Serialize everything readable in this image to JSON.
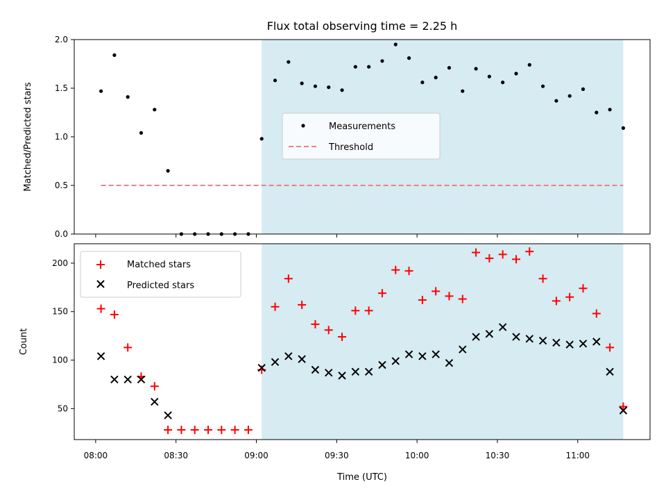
{
  "chart_data": [
    {
      "type": "scatter",
      "title": "Flux total observing time = 2.25 h",
      "xlabel": "",
      "ylabel": "Matched/Predicted stars",
      "ylim": [
        0,
        2.0
      ],
      "yticks": [
        "0.0",
        "0.5",
        "1.0",
        "1.5",
        "2.0"
      ],
      "shaded_span": {
        "start": "09:02",
        "end": "11:17",
        "color": "#add8e6"
      },
      "legend_position": "center",
      "threshold": {
        "name": "Threshold",
        "value": 0.5,
        "start": "08:02",
        "end": "11:17",
        "color": "#f08080",
        "style": "dashed"
      },
      "series": [
        {
          "name": "Measurements",
          "marker": "dot",
          "color": "#000000",
          "x": [
            "08:02",
            "08:07",
            "08:12",
            "08:17",
            "08:22",
            "08:27",
            "08:32",
            "08:37",
            "08:42",
            "08:47",
            "08:52",
            "08:57",
            "09:02",
            "09:07",
            "09:12",
            "09:17",
            "09:22",
            "09:27",
            "09:32",
            "09:37",
            "09:42",
            "09:47",
            "09:52",
            "09:57",
            "10:02",
            "10:07",
            "10:12",
            "10:17",
            "10:22",
            "10:27",
            "10:32",
            "10:37",
            "10:42",
            "10:47",
            "10:52",
            "10:57",
            "11:02",
            "11:07",
            "11:12",
            "11:17"
          ],
          "y": [
            1.47,
            1.84,
            1.41,
            1.04,
            1.28,
            0.65,
            0.0,
            0.0,
            0.0,
            0.0,
            0.0,
            0.0,
            0.98,
            1.58,
            1.77,
            1.55,
            1.52,
            1.51,
            1.48,
            1.72,
            1.72,
            1.78,
            1.95,
            1.81,
            1.56,
            1.61,
            1.71,
            1.47,
            1.7,
            1.62,
            1.56,
            1.65,
            1.74,
            1.52,
            1.37,
            1.42,
            1.49,
            1.25,
            1.28,
            1.09
          ]
        }
      ]
    },
    {
      "type": "scatter",
      "title": "",
      "xlabel": "Time (UTC)",
      "ylabel": "Count",
      "ylim": [
        18,
        220
      ],
      "yticks": [
        "50",
        "100",
        "150",
        "200"
      ],
      "xticks": [
        "08:00",
        "08:30",
        "09:00",
        "09:30",
        "10:00",
        "10:30",
        "11:00"
      ],
      "shaded_span": {
        "start": "09:02",
        "end": "11:17",
        "color": "#add8e6"
      },
      "legend_position": "upper left",
      "series": [
        {
          "name": "Matched stars",
          "marker": "plus",
          "color": "#ff0000",
          "x": [
            "08:02",
            "08:07",
            "08:12",
            "08:17",
            "08:22",
            "08:27",
            "08:32",
            "08:37",
            "08:42",
            "08:47",
            "08:52",
            "08:57",
            "09:02",
            "09:07",
            "09:12",
            "09:17",
            "09:22",
            "09:27",
            "09:32",
            "09:37",
            "09:42",
            "09:47",
            "09:52",
            "09:57",
            "10:02",
            "10:07",
            "10:12",
            "10:17",
            "10:22",
            "10:27",
            "10:32",
            "10:37",
            "10:42",
            "10:47",
            "10:52",
            "10:57",
            "11:02",
            "11:07",
            "11:12",
            "11:17"
          ],
          "y": [
            153,
            147,
            113,
            83,
            73,
            28,
            28,
            28,
            28,
            28,
            28,
            28,
            90,
            155,
            184,
            157,
            137,
            131,
            124,
            151,
            151,
            169,
            193,
            192,
            162,
            171,
            166,
            163,
            211,
            205,
            209,
            204,
            212,
            184,
            161,
            165,
            174,
            148,
            113,
            52
          ]
        },
        {
          "name": "Predicted stars",
          "marker": "x",
          "color": "#000000",
          "x": [
            "08:02",
            "08:07",
            "08:12",
            "08:17",
            "08:22",
            "08:27",
            "09:02",
            "09:07",
            "09:12",
            "09:17",
            "09:22",
            "09:27",
            "09:32",
            "09:37",
            "09:42",
            "09:47",
            "09:52",
            "09:57",
            "10:02",
            "10:07",
            "10:12",
            "10:17",
            "10:22",
            "10:27",
            "10:32",
            "10:37",
            "10:42",
            "10:47",
            "10:52",
            "10:57",
            "11:02",
            "11:07",
            "11:12",
            "11:17"
          ],
          "y": [
            104,
            80,
            80,
            80,
            57,
            43,
            92,
            98,
            104,
            101,
            90,
            87,
            84,
            88,
            88,
            95,
            99,
            106,
            104,
            106,
            97,
            111,
            124,
            127,
            134,
            124,
            122,
            120,
            118,
            116,
            117,
            119,
            88,
            48
          ]
        }
      ]
    }
  ]
}
